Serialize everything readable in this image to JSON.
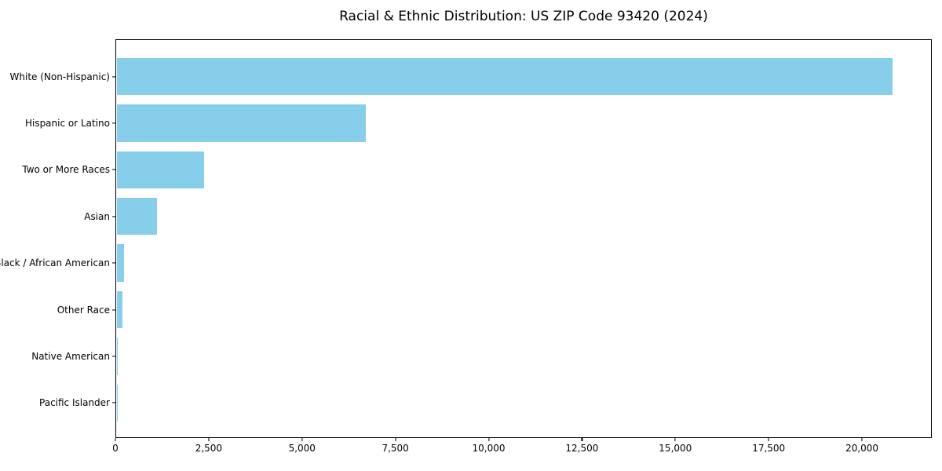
{
  "chart_data": {
    "type": "bar",
    "orientation": "horizontal",
    "title": "Racial & Ethnic Distribution: US ZIP Code 93420 (2024)",
    "xlabel": "",
    "ylabel": "",
    "categories": [
      "White (Non-Hispanic)",
      "Hispanic or Latino",
      "Two or More Races",
      "Asian",
      "Black / African American",
      "Other Race",
      "Native American",
      "Pacific Islander"
    ],
    "values": [
      20810,
      6715,
      2385,
      1120,
      230,
      180,
      40,
      15
    ],
    "xlim": [
      0,
      21870
    ],
    "x_ticks": [
      0,
      2500,
      5000,
      7500,
      10000,
      12500,
      15000,
      17500,
      20000
    ],
    "x_tick_labels": [
      "0",
      "2,500",
      "5,000",
      "7,500",
      "10,000",
      "12,500",
      "15,000",
      "17,500",
      "20,000"
    ],
    "bar_color": "#87CEEB",
    "spine_color": "#000000",
    "text_color": "#000000",
    "background": "#FFFFFF",
    "grid": false,
    "legend": null
  }
}
